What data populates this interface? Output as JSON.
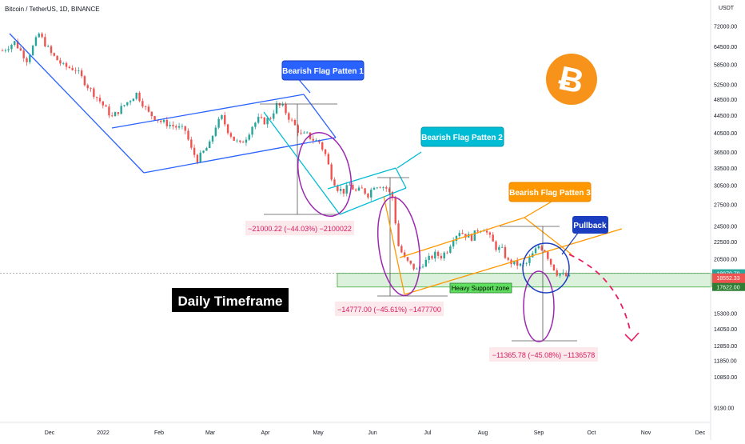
{
  "header": {
    "title": "Bitcoin / TetherUS, 1D, BINANCE",
    "currency": "USDT"
  },
  "chart_data": {
    "type": "candlestick",
    "title": "Bitcoin / TetherUS, 1D, BINANCE",
    "y_scale": "log",
    "ylim": [
      8600,
      80000
    ],
    "price_ticks": [
      72000,
      64500,
      58500,
      52500,
      48500,
      44500,
      40500,
      36500,
      33500,
      30500,
      27500,
      24500,
      22500,
      20500,
      15300,
      14050,
      12850,
      11850,
      10850,
      9190
    ],
    "tick_labels": [
      "72000.00",
      "64500.00",
      "58500.00",
      "52500.00",
      "48500.00",
      "44500.00",
      "40500.00",
      "36500.00",
      "33500.00",
      "30500.00",
      "27500.00",
      "24500.00",
      "22500.00",
      "20500.00",
      "15300.00",
      "14050.00",
      "12850.00",
      "11850.00",
      "10850.00",
      "9190.00"
    ],
    "x_labels": [
      "Dec",
      "2022",
      "Feb",
      "Mar",
      "Apr",
      "May",
      "Jun",
      "Jul",
      "Aug",
      "Sep",
      "Oct",
      "Nov",
      "Dec"
    ],
    "price_badges": [
      {
        "text": "18970.79",
        "value": 18970.79,
        "color": "#26a69a"
      },
      {
        "text": "18552.33",
        "value": 18552.33,
        "color": "#ef5350"
      },
      {
        "text": "17:55:28",
        "value": 18300,
        "color": "#ef5350"
      },
      {
        "text": "17622.00",
        "value": 17622,
        "color": "#2e7d32"
      }
    ],
    "candle_colors": {
      "up": "#26a69a",
      "down": "#ef5350"
    },
    "path": [
      [
        0,
        63000
      ],
      [
        4,
        66000
      ],
      [
        8,
        60000
      ],
      [
        12,
        69000
      ],
      [
        16,
        62000
      ],
      [
        20,
        58000
      ],
      [
        24,
        57000
      ],
      [
        28,
        52000
      ],
      [
        32,
        48000
      ],
      [
        36,
        44000
      ],
      [
        40,
        47000
      ],
      [
        44,
        50000
      ],
      [
        48,
        45000
      ],
      [
        52,
        43000
      ],
      [
        56,
        42000
      ],
      [
        60,
        41000
      ],
      [
        62,
        37000
      ],
      [
        64,
        35000
      ],
      [
        66,
        36500
      ],
      [
        68,
        38000
      ],
      [
        70,
        42000
      ],
      [
        72,
        44000
      ],
      [
        74,
        41000
      ],
      [
        76,
        39000
      ],
      [
        78,
        38000
      ],
      [
        80,
        39500
      ],
      [
        82,
        42000
      ],
      [
        84,
        43500
      ],
      [
        86,
        43000
      ],
      [
        88,
        44000
      ],
      [
        90,
        47000
      ],
      [
        92,
        46500
      ],
      [
        94,
        44000
      ],
      [
        96,
        42000
      ],
      [
        98,
        40000
      ],
      [
        100,
        40000
      ],
      [
        102,
        39000
      ],
      [
        104,
        38500
      ],
      [
        106,
        36000
      ],
      [
        108,
        32000
      ],
      [
        110,
        30000
      ],
      [
        112,
        29500
      ],
      [
        114,
        30500
      ],
      [
        116,
        29500
      ],
      [
        118,
        29800
      ],
      [
        120,
        29000
      ],
      [
        122,
        30500
      ],
      [
        124,
        30500
      ],
      [
        126,
        30000
      ],
      [
        128,
        28500
      ],
      [
        130,
        22000
      ],
      [
        132,
        20500
      ],
      [
        134,
        19800
      ],
      [
        136,
        19300
      ],
      [
        138,
        20000
      ],
      [
        140,
        20500
      ],
      [
        142,
        21000
      ],
      [
        144,
        20800
      ],
      [
        146,
        21500
      ],
      [
        148,
        23000
      ],
      [
        150,
        23800
      ],
      [
        152,
        23300
      ],
      [
        154,
        23000
      ],
      [
        156,
        24000
      ],
      [
        158,
        24200
      ],
      [
        160,
        23000
      ],
      [
        162,
        21800
      ],
      [
        164,
        21500
      ],
      [
        166,
        20200
      ],
      [
        168,
        20000
      ],
      [
        170,
        19800
      ],
      [
        172,
        20000
      ],
      [
        174,
        21000
      ],
      [
        176,
        22000
      ],
      [
        178,
        21500
      ],
      [
        180,
        20000
      ],
      [
        182,
        19000
      ],
      [
        184,
        18800
      ],
      [
        186,
        18552
      ]
    ],
    "annotations": [
      {
        "text": "Bearish Flag Patten 1",
        "color": "#2962ff"
      },
      {
        "text": "Bearish Flag Patten 2",
        "color": "#00bcd4"
      },
      {
        "text": "Bearish Flag Patten 3",
        "color": "#ff9800"
      },
      {
        "text": "Pullback",
        "color": "#1a3ebf"
      },
      {
        "text": "Heavy Support zone",
        "color": "#4caf50"
      },
      {
        "text": "Daily Timeframe",
        "color": "#000000"
      }
    ],
    "measurements": [
      {
        "text": "−21000.22 (−44.03%) −2100022"
      },
      {
        "text": "−14777.00 (−45.61%) −1477700"
      },
      {
        "text": "−11365.78 (−45.08%) −1136578"
      }
    ],
    "support_zone": [
      17622,
      18970.79
    ],
    "logo": "bitcoin-logo"
  }
}
